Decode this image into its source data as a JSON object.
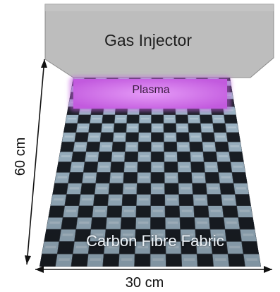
{
  "labels": {
    "gas_injector": "Gas Injector",
    "plasma": "Plasma",
    "fabric": "Carbon Fibre Fabric",
    "height": "60 cm",
    "width": "30 cm"
  },
  "colors": {
    "injector_fill": "#bdbdbd",
    "plasma_fill": "#d97cf0",
    "fabric_light": "#aac4d6",
    "fabric_dark": "#1c2128"
  }
}
